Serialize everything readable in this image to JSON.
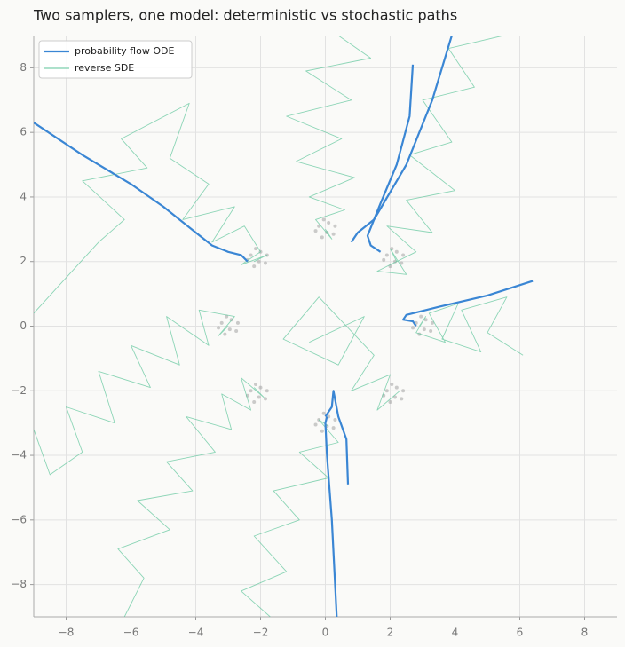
{
  "chart_data": {
    "type": "line",
    "title": "Two samplers, one model: deterministic vs stochastic paths",
    "xlim": [
      -9,
      9
    ],
    "ylim": [
      -9,
      9
    ],
    "xticks": [
      {
        "value": -8,
        "label": "−8"
      },
      {
        "value": -6,
        "label": "−6"
      },
      {
        "value": -4,
        "label": "−4"
      },
      {
        "value": -2,
        "label": "−2"
      },
      0,
      2,
      4,
      6,
      8
    ],
    "yticks": [
      {
        "value": -8,
        "label": "−8"
      },
      {
        "value": -6,
        "label": "−6"
      },
      {
        "value": -4,
        "label": "−4"
      },
      {
        "value": -2,
        "label": "−2"
      },
      0,
      2,
      4,
      6,
      8
    ],
    "grid": true,
    "legend": "upper left",
    "series": [
      {
        "name": "probability flow ODE",
        "color": "#3a86d4",
        "paths": [
          {
            "x": [
              -9,
              -7.5,
              -6,
              -5,
              -4,
              -3.5,
              -3,
              -2.6,
              -2.4
            ],
            "y": [
              6.3,
              5.3,
              4.4,
              3.7,
              2.9,
              2.5,
              2.3,
              2.2,
              2.0
            ]
          },
          {
            "x": [
              2.7,
              2.6,
              2.2,
              1.7,
              1.3,
              1.4,
              1.7
            ],
            "y": [
              8.1,
              6.5,
              5,
              3.8,
              2.8,
              2.5,
              2.3
            ]
          },
          {
            "x": [
              3.9,
              3.3,
              2.5,
              1.5,
              1.0,
              0.8
            ],
            "y": [
              9,
              7,
              5,
              3.3,
              2.9,
              2.6
            ]
          },
          {
            "x": [
              6.4,
              5,
              3.5,
              2.5,
              2.4,
              2.7,
              2.8
            ],
            "y": [
              1.4,
              0.95,
              0.6,
              0.35,
              0.2,
              0.15,
              0
            ]
          },
          {
            "x": [
              0.35,
              0.2,
              0.05,
              0,
              0.05
            ],
            "y": [
              -9,
              -6,
              -4,
              -3,
              -2.8
            ]
          },
          {
            "x": [
              0.7,
              0.65,
              0.4,
              0.25,
              0.2,
              0
            ],
            "y": [
              -4.9,
              -3.5,
              -2.8,
              -2,
              -2.5,
              -2.8
            ]
          }
        ]
      },
      {
        "name": "reverse SDE",
        "color": "#5cc59a",
        "paths": [
          {
            "x": [
              -9,
              -8,
              -7,
              -6.2,
              -7.5,
              -5.5,
              -6.3,
              -4.2,
              -4.8,
              -3.6,
              -4.4,
              -2.8,
              -3.5,
              -2.5,
              -2,
              -2.6,
              -1.8,
              -2.2
            ],
            "y": [
              0.4,
              1.5,
              2.6,
              3.3,
              4.5,
              4.9,
              5.8,
              6.9,
              5.2,
              4.4,
              3.3,
              3.7,
              2.6,
              3.1,
              2.3,
              1.9,
              2.2,
              2
            ]
          },
          {
            "x": [
              -6.2,
              -5.6,
              -6.4,
              -4.8,
              -5.8,
              -4.1,
              -4.9,
              -3.4,
              -4.3,
              -2.9,
              -3.2,
              -2.3,
              -2.6,
              -1.9,
              -2.2
            ],
            "y": [
              -9,
              -7.8,
              -6.9,
              -6.3,
              -5.4,
              -5.1,
              -4.2,
              -3.9,
              -2.8,
              -3.2,
              -2.1,
              -2.6,
              -1.6,
              -2.2,
              -1.9
            ]
          },
          {
            "x": [
              5.5,
              3.8,
              4.6,
              3,
              3.9,
              2.6,
              4,
              2.5,
              3.3,
              1.9,
              2.8,
              1.6,
              2.5,
              2,
              2.2
            ],
            "y": [
              9,
              8.6,
              7.4,
              7,
              5.7,
              5.3,
              4.2,
              3.9,
              2.9,
              3.1,
              2.3,
              1.7,
              1.6,
              2.4,
              2
            ]
          },
          {
            "x": [
              6.1,
              5,
              5.6,
              4.2,
              4.8,
              3.6,
              4.1,
              3.2,
              3.7,
              2.8,
              3.1,
              2.9
            ],
            "y": [
              -0.9,
              -0.2,
              0.9,
              0.5,
              -0.8,
              -0.4,
              0.7,
              0.4,
              -0.5,
              -0.2,
              0.3,
              0
            ]
          },
          {
            "x": [
              -9,
              -8.5,
              -7.5,
              -8,
              -6.5,
              -7,
              -5.4,
              -6,
              -4.5,
              -4.9,
              -3.6,
              -3.9,
              -2.8,
              -3.3,
              -3
            ],
            "y": [
              -3.2,
              -4.6,
              -3.9,
              -2.5,
              -3,
              -1.4,
              -1.9,
              -0.6,
              -1.2,
              0.3,
              -0.6,
              0.5,
              0.3,
              -0.3,
              0
            ]
          },
          {
            "x": [
              0.4,
              1.4,
              -0.6,
              0.8,
              -1.2,
              0.5,
              -0.9,
              0.9,
              -0.5,
              0.6,
              -0.3,
              0.2,
              0
            ],
            "y": [
              9,
              8.3,
              7.9,
              7,
              6.5,
              5.8,
              5.1,
              4.6,
              4,
              3.6,
              3.3,
              2.7,
              3
            ]
          },
          {
            "x": [
              -0.5,
              1.2,
              0.4,
              -1.3,
              -0.2,
              1.5,
              0.8,
              2,
              1.6,
              2.3
            ],
            "y": [
              -0.5,
              0.3,
              -1.2,
              -0.4,
              0.9,
              -0.9,
              -2,
              -1.5,
              -2.6,
              -2
            ]
          },
          {
            "x": [
              -1.7,
              -2.6,
              -1.2,
              -2.2,
              -0.8,
              -1.6,
              0.1,
              -0.8,
              0.4,
              -0.2,
              0.1
            ],
            "y": [
              -9,
              -8.2,
              -7.6,
              -6.5,
              -6,
              -5.1,
              -4.7,
              -3.9,
              -3.6,
              -2.9,
              -3.1
            ]
          }
        ]
      }
    ],
    "points": {
      "color": "#999999",
      "x": [
        3.1,
        2.8,
        3.25,
        2.9,
        3.3,
        2.7,
        3.05,
        2.95,
        2.2,
        1.9,
        2.35,
        2,
        2.4,
        1.8,
        2.15,
        2.05,
        0.1,
        -0.2,
        0.25,
        -0.1,
        0.3,
        -0.3,
        0.05,
        -0.05,
        -2,
        -2.3,
        -1.85,
        -2.2,
        -1.8,
        -2.4,
        -2.05,
        -2.15,
        -2.9,
        -3.2,
        -2.75,
        -3.1,
        -2.7,
        -3.3,
        -2.95,
        -3.05,
        -2,
        -2.3,
        -1.85,
        -2.2,
        -1.8,
        -2.4,
        -2.05,
        -2.15,
        0.1,
        -0.2,
        0.25,
        -0.1,
        0.3,
        -0.3,
        0.05,
        -0.05,
        2.2,
        1.9,
        2.35,
        2,
        2.4,
        1.8,
        2.15,
        2.05
      ],
      "y": [
        0.2,
        0.1,
        -0.15,
        -0.25,
        0.1,
        -0.05,
        -0.1,
        0.3,
        2.3,
        2.2,
        1.95,
        1.85,
        2.2,
        2.05,
        2,
        2.4,
        3.2,
        3.1,
        2.85,
        2.75,
        3.1,
        2.95,
        2.9,
        3.3,
        2.3,
        2.2,
        1.95,
        1.85,
        2.2,
        2.05,
        2,
        2.4,
        0.2,
        0.1,
        -0.15,
        -0.25,
        0.1,
        -0.05,
        -0.1,
        0.3,
        -1.9,
        -2,
        -2.25,
        -2.35,
        -2,
        -2.15,
        -2.2,
        -1.8,
        -2.8,
        -2.9,
        -3.15,
        -3.25,
        -2.9,
        -3.05,
        -3.1,
        -2.7,
        -1.9,
        -2,
        -2.25,
        -2.35,
        -2,
        -2.15,
        -2.2,
        -1.8
      ]
    }
  }
}
